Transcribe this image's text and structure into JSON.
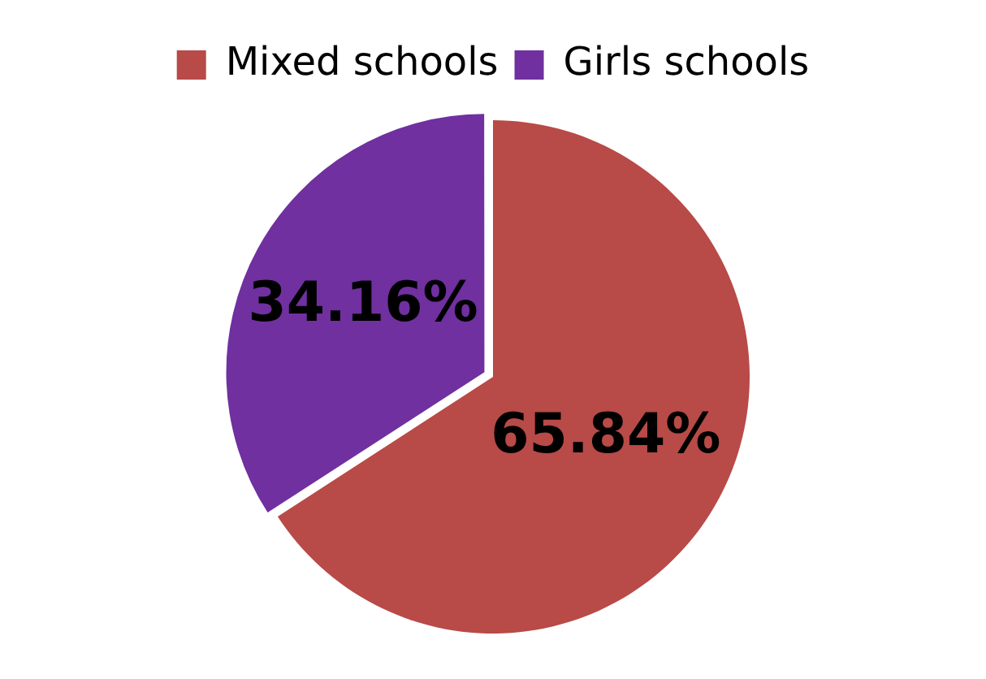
{
  "chart_data": {
    "type": "pie",
    "categories": [
      "Mixed schools",
      "Girls schools"
    ],
    "values": [
      65.84,
      34.16
    ],
    "colors": [
      "#b84a47",
      "#7030a0"
    ],
    "value_labels": [
      "65.84%",
      "34.16%"
    ],
    "legend": "top"
  }
}
